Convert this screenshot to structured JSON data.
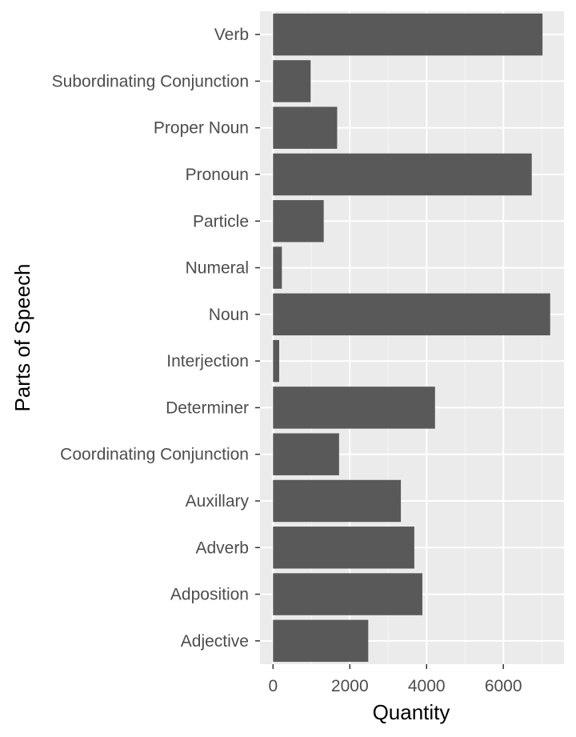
{
  "chart_data": {
    "type": "bar",
    "orientation": "horizontal",
    "title": "",
    "xlabel": "Quantity",
    "ylabel": "Parts of Speech",
    "categories": [
      "Verb",
      "Subordinating Conjunction",
      "Proper Noun",
      "Pronoun",
      "Particle",
      "Numeral",
      "Noun",
      "Interjection",
      "Determiner",
      "Coordinating Conjunction",
      "Auxillary",
      "Adverb",
      "Adposition",
      "Adjective"
    ],
    "values": [
      7020,
      980,
      1670,
      6740,
      1320,
      230,
      7220,
      160,
      4220,
      1720,
      3330,
      3680,
      3890,
      2480
    ],
    "xlim": [
      -340,
      7580
    ],
    "xticks": [
      0,
      2000,
      4000,
      6000
    ],
    "xtick_labels": [
      "0",
      "2000",
      "4000",
      "6000"
    ],
    "grid": true,
    "colors": {
      "bar": "#595959",
      "panel": "#ebebeb",
      "grid_major": "#ffffff",
      "grid_minor": "#f5f5f5"
    }
  }
}
